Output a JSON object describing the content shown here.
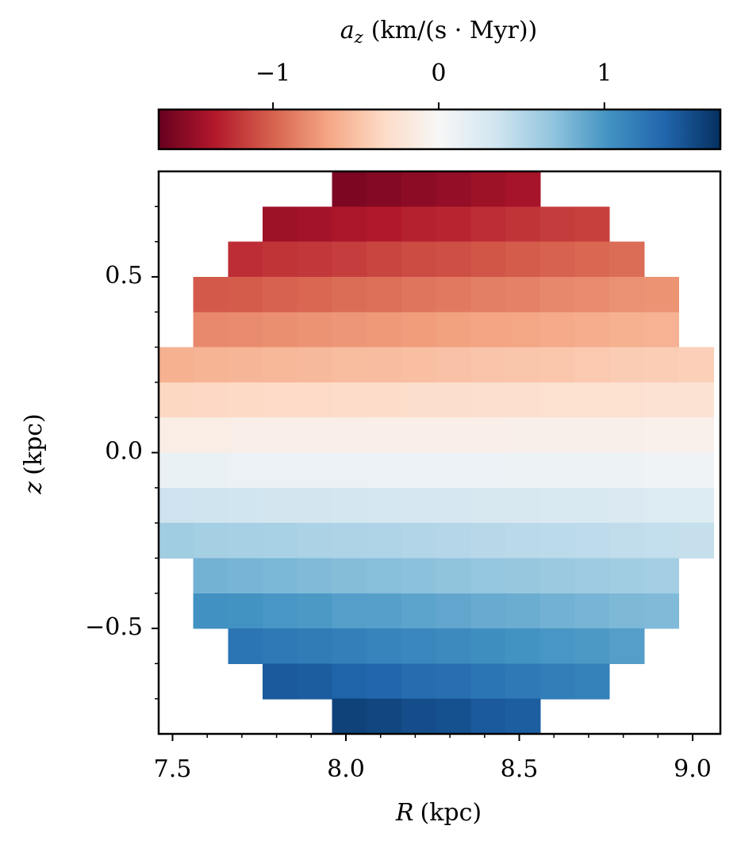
{
  "chart_data": {
    "type": "heatmap",
    "colorbar_label": [
      "a",
      "z",
      "(km/(s · Myr))"
    ],
    "xlabel": [
      "R",
      "(kpc)"
    ],
    "ylabel": [
      "z",
      "(kpc)"
    ],
    "colormap": [
      "#67001f",
      "#b2182b",
      "#d6604d",
      "#f4a582",
      "#fddbc7",
      "#f7f7f7",
      "#d1e5f0",
      "#92c5de",
      "#4393c3",
      "#2166ac",
      "#053061"
    ],
    "clim": [
      -1.69,
      1.7
    ],
    "cticks": [
      {
        "value": -1,
        "label": "−1"
      },
      0,
      1
    ],
    "xlim": [
      7.46,
      9.08
    ],
    "ylim": [
      -0.8,
      0.8
    ],
    "xticks": [
      7.5,
      {
        "value": 8.0,
        "label": "8.0"
      },
      8.5,
      {
        "value": 9.0,
        "label": "9.0"
      }
    ],
    "yticks": [
      {
        "value": -0.5,
        "label": "−0.5"
      },
      {
        "value": 0.0,
        "label": "0.0"
      },
      0.5
    ],
    "xminorticks": [
      7.6,
      7.7,
      7.8,
      7.9,
      8.1,
      8.2,
      8.3,
      8.4,
      8.6,
      8.7,
      8.8,
      8.9,
      9.0
    ],
    "yminorticks": [
      -0.7,
      -0.6,
      -0.4,
      -0.3,
      -0.2,
      -0.1,
      0.1,
      0.2,
      0.3,
      0.4,
      0.6,
      0.7
    ],
    "x": [
      7.51,
      7.61,
      7.71,
      7.81,
      7.91,
      8.01,
      8.11,
      8.21,
      8.31,
      8.41,
      8.51,
      8.61,
      8.71,
      8.81,
      8.91,
      9.01
    ],
    "y": [
      0.75,
      0.65,
      0.55,
      0.45,
      0.35,
      0.25,
      0.15,
      0.05,
      -0.05,
      -0.15,
      -0.25,
      -0.35,
      -0.45,
      -0.55,
      -0.65,
      -0.75
    ],
    "values": [
      [
        null,
        null,
        null,
        null,
        null,
        -1.59,
        -1.56,
        -1.52,
        -1.49,
        -1.44,
        -1.41,
        null,
        null,
        null,
        null,
        null
      ],
      [
        null,
        null,
        null,
        -1.44,
        -1.42,
        -1.38,
        -1.35,
        -1.31,
        -1.29,
        -1.25,
        -1.22,
        -1.18,
        -1.16,
        null,
        null,
        null
      ],
      [
        null,
        null,
        -1.25,
        -1.22,
        -1.2,
        -1.17,
        -1.14,
        -1.11,
        -1.09,
        -1.06,
        -1.03,
        -1.0,
        -0.98,
        -0.95,
        null,
        null
      ],
      [
        null,
        -1.04,
        -1.03,
        -1.0,
        -0.98,
        -0.95,
        -0.94,
        -0.91,
        -0.89,
        -0.86,
        -0.85,
        -0.82,
        -0.8,
        -0.77,
        -0.76,
        null
      ],
      [
        null,
        -0.81,
        -0.8,
        -0.78,
        -0.76,
        -0.74,
        -0.73,
        -0.71,
        -0.69,
        -0.67,
        -0.66,
        -0.64,
        -0.62,
        -0.6,
        -0.59,
        null
      ],
      [
        -0.6,
        -0.58,
        -0.57,
        -0.56,
        -0.55,
        -0.53,
        -0.52,
        -0.51,
        -0.5,
        -0.48,
        -0.47,
        -0.46,
        -0.45,
        -0.43,
        -0.42,
        -0.41
      ],
      [
        -0.36,
        -0.35,
        -0.34,
        -0.33,
        -0.33,
        -0.32,
        -0.31,
        -0.3,
        -0.3,
        -0.29,
        -0.28,
        -0.27,
        -0.27,
        -0.26,
        -0.25,
        -0.24
      ],
      [
        -0.12,
        -0.12,
        -0.11,
        -0.11,
        -0.11,
        -0.11,
        -0.1,
        -0.1,
        -0.1,
        -0.1,
        -0.09,
        -0.09,
        -0.09,
        -0.09,
        -0.08,
        -0.08
      ],
      [
        0.12,
        0.12,
        0.11,
        0.11,
        0.11,
        0.11,
        0.1,
        0.1,
        0.1,
        0.1,
        0.09,
        0.09,
        0.09,
        0.09,
        0.08,
        0.08
      ],
      [
        0.36,
        0.35,
        0.34,
        0.33,
        0.33,
        0.32,
        0.31,
        0.3,
        0.3,
        0.29,
        0.28,
        0.27,
        0.27,
        0.26,
        0.25,
        0.24
      ],
      [
        0.6,
        0.58,
        0.57,
        0.56,
        0.55,
        0.53,
        0.52,
        0.51,
        0.5,
        0.48,
        0.47,
        0.46,
        0.45,
        0.43,
        0.42,
        0.41
      ],
      [
        null,
        0.81,
        0.8,
        0.78,
        0.76,
        0.74,
        0.73,
        0.71,
        0.69,
        0.67,
        0.66,
        0.64,
        0.62,
        0.6,
        0.59,
        null
      ],
      [
        null,
        1.04,
        1.03,
        1.0,
        0.98,
        0.95,
        0.94,
        0.91,
        0.89,
        0.86,
        0.85,
        0.82,
        0.8,
        0.77,
        0.76,
        null
      ],
      [
        null,
        null,
        1.25,
        1.22,
        1.2,
        1.17,
        1.14,
        1.11,
        1.09,
        1.06,
        1.03,
        1.0,
        0.98,
        0.95,
        null,
        null
      ],
      [
        null,
        null,
        null,
        1.44,
        1.42,
        1.38,
        1.35,
        1.31,
        1.29,
        1.25,
        1.22,
        1.18,
        1.16,
        null,
        null,
        null
      ],
      [
        null,
        null,
        null,
        null,
        null,
        1.59,
        1.56,
        1.52,
        1.49,
        1.44,
        1.41,
        null,
        null,
        null,
        null,
        null
      ]
    ]
  }
}
